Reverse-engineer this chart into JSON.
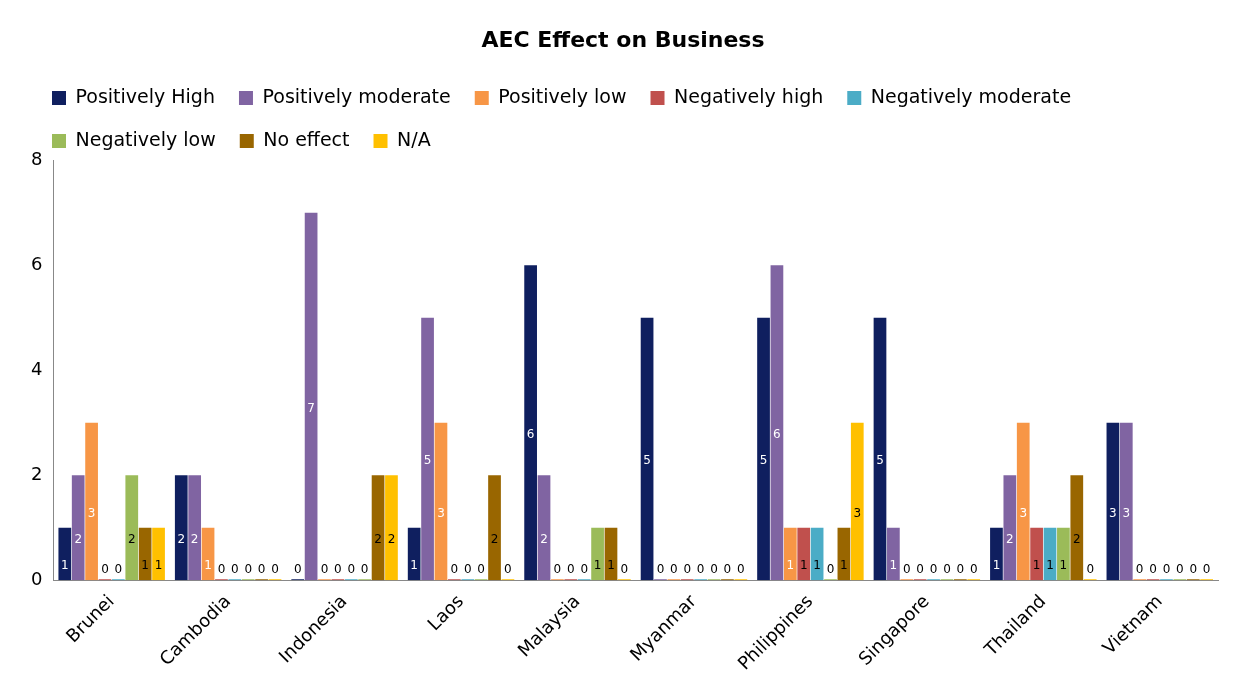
{
  "chart_data": {
    "type": "bar",
    "title": "AEC Effect on Business",
    "categories": [
      "Brunei",
      "Cambodia",
      "Indonesia",
      "Laos",
      "Malaysia",
      "Myanmar",
      "Philippines",
      "Singapore",
      "Thailand",
      "Vietnam"
    ],
    "series": [
      {
        "name": "Positively High",
        "color": "#0f1f5f",
        "values": [
          1,
          2,
          0,
          1,
          6,
          5,
          5,
          5,
          1,
          3
        ]
      },
      {
        "name": "Positively moderate",
        "color": "#8064a2",
        "values": [
          2,
          2,
          7,
          5,
          2,
          0,
          6,
          1,
          2,
          3
        ]
      },
      {
        "name": "Positively low",
        "color": "#f79646",
        "values": [
          3,
          1,
          0,
          3,
          0,
          0,
          1,
          0,
          3,
          0
        ]
      },
      {
        "name": "Negatively high",
        "color": "#c0504d",
        "values": [
          0,
          0,
          0,
          0,
          0,
          0,
          1,
          0,
          1,
          0
        ]
      },
      {
        "name": "Negatively moderate",
        "color": "#4bacc6",
        "values": [
          0,
          0,
          0,
          0,
          0,
          0,
          1,
          0,
          1,
          0
        ]
      },
      {
        "name": "Negatively low",
        "color": "#9bbb59",
        "values": [
          2,
          0,
          0,
          0,
          1,
          0,
          0,
          0,
          1,
          0
        ]
      },
      {
        "name": "No effect",
        "color": "#996600",
        "values": [
          1,
          0,
          2,
          2,
          1,
          0,
          1,
          0,
          2,
          0
        ]
      },
      {
        "name": "N/A",
        "color": "#ffc000",
        "values": [
          1,
          0,
          2,
          0,
          0,
          0,
          3,
          0,
          0,
          0
        ]
      }
    ],
    "ylim": [
      0,
      8
    ],
    "yticks": [
      0,
      2,
      4,
      6,
      8
    ],
    "grid": false,
    "legend": "top",
    "data_labels": true
  }
}
